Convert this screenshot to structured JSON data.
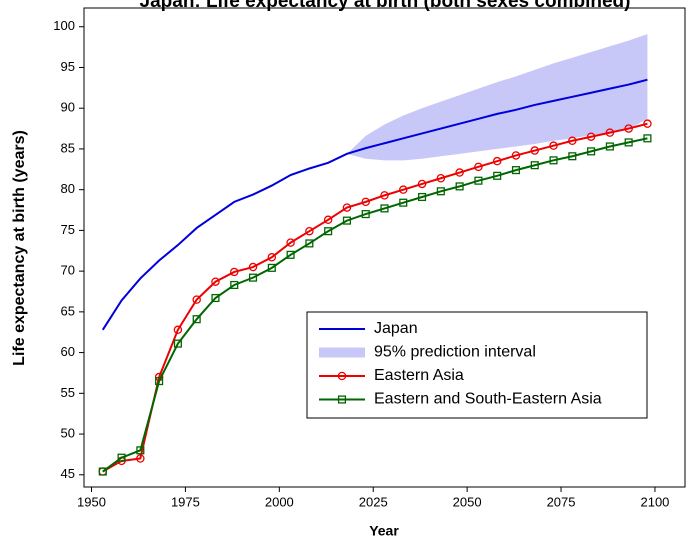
{
  "chart_data": {
    "type": "line",
    "title": "Japan: Life expectancy at birth (both sexes combined)",
    "xlabel": "Year",
    "ylabel": "Life expectancy at birth (years)",
    "x": [
      1953,
      1958,
      1963,
      1968,
      1973,
      1978,
      1983,
      1988,
      1993,
      1998,
      2003,
      2008,
      2013,
      2018,
      2023,
      2028,
      2033,
      2038,
      2043,
      2048,
      2053,
      2058,
      2063,
      2068,
      2073,
      2078,
      2083,
      2088,
      2093,
      2098
    ],
    "series": [
      {
        "name": "Japan",
        "color": "#0000dd",
        "marker": "none",
        "values": [
          62.8,
          66.4,
          69.1,
          71.3,
          73.2,
          75.3,
          76.9,
          78.5,
          79.4,
          80.5,
          81.8,
          82.6,
          83.3,
          84.4,
          85.1,
          85.7,
          86.3,
          86.9,
          87.5,
          88.1,
          88.7,
          89.3,
          89.8,
          90.4,
          90.9,
          91.4,
          91.9,
          92.4,
          92.9,
          93.5
        ]
      },
      {
        "name": "Eastern Asia",
        "color": "#ee0000",
        "marker": "circle",
        "values": [
          45.4,
          46.7,
          47.0,
          57.0,
          62.8,
          66.5,
          68.7,
          69.9,
          70.5,
          71.7,
          73.5,
          74.9,
          76.3,
          77.8,
          78.5,
          79.3,
          80.0,
          80.7,
          81.4,
          82.1,
          82.8,
          83.5,
          84.2,
          84.8,
          85.4,
          86.0,
          86.5,
          87.0,
          87.5,
          88.1
        ]
      },
      {
        "name": "Eastern and South-Eastern Asia",
        "color": "#006600",
        "marker": "square",
        "values": [
          45.4,
          47.1,
          48.0,
          56.5,
          61.1,
          64.1,
          66.7,
          68.3,
          69.2,
          70.4,
          72.0,
          73.4,
          74.9,
          76.2,
          77.0,
          77.7,
          78.4,
          79.1,
          79.8,
          80.4,
          81.1,
          81.7,
          82.4,
          83.0,
          83.6,
          84.1,
          84.7,
          85.3,
          85.8,
          86.3
        ]
      }
    ],
    "interval": {
      "name": "95% prediction interval",
      "color": "#c8c8f8",
      "lower": [
        null,
        null,
        null,
        null,
        null,
        null,
        null,
        null,
        null,
        null,
        null,
        null,
        null,
        84.4,
        83.8,
        83.6,
        83.6,
        83.8,
        84.1,
        84.4,
        84.7,
        85.0,
        85.3,
        85.6,
        86.0,
        86.3,
        86.7,
        87.0,
        87.4,
        88.7
      ],
      "upper": [
        null,
        null,
        null,
        null,
        null,
        null,
        null,
        null,
        null,
        null,
        null,
        null,
        null,
        84.4,
        86.6,
        88.0,
        89.1,
        90.0,
        90.8,
        91.6,
        92.4,
        93.2,
        93.9,
        94.7,
        95.5,
        96.2,
        96.9,
        97.6,
        98.3,
        99.1
      ]
    },
    "xlim": [
      1948,
      2108
    ],
    "ylim": [
      43.5,
      102.3
    ],
    "xticks": [
      1950,
      1975,
      2000,
      2025,
      2050,
      2075,
      2100
    ],
    "yticks": [
      45,
      50,
      55,
      60,
      65,
      70,
      75,
      80,
      85,
      90,
      95,
      100
    ],
    "legend": "lower right"
  }
}
